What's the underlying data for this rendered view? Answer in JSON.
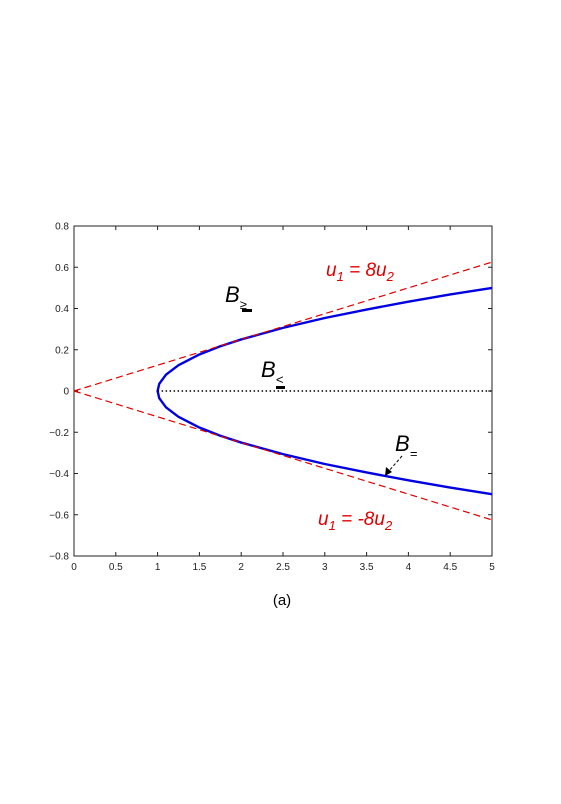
{
  "chart_data": {
    "type": "line",
    "title": "",
    "xlabel": "",
    "ylabel": "",
    "xlim": [
      0,
      5
    ],
    "ylim": [
      -0.8,
      0.8
    ],
    "xticks": [
      0,
      0.5,
      1,
      1.5,
      2,
      2.5,
      3,
      3.5,
      4,
      4.5,
      5
    ],
    "yticks": [
      -0.8,
      -0.6,
      -0.4,
      -0.2,
      0,
      0.2,
      0.4,
      0.6,
      0.8
    ],
    "xtick_labels": [
      "0",
      "0.5",
      "1",
      "1.5",
      "2",
      "2.5",
      "3",
      "3.5",
      "4",
      "4.5",
      "5"
    ],
    "ytick_labels": [
      "−0.8",
      "−0.6",
      "−0.4",
      "−0.2",
      "0",
      "0.2",
      "0.4",
      "0.6",
      "0.8"
    ],
    "grid": false,
    "series": [
      {
        "style": "solid",
        "color": "#0000e0",
        "x": [
          5,
          4.5,
          4,
          3.5,
          3,
          2.5,
          2,
          1.75,
          1.5,
          1.25,
          1.1,
          1.02,
          1,
          1.02,
          1.1,
          1.25,
          1.5,
          1.75,
          2,
          2.5,
          3,
          3.5,
          4,
          4.5,
          5
        ],
        "y": [
          0.5,
          0.468,
          0.433,
          0.395,
          0.354,
          0.306,
          0.25,
          0.217,
          0.177,
          0.125,
          0.079,
          0.035,
          0,
          -0.035,
          -0.079,
          -0.125,
          -0.177,
          -0.217,
          -0.25,
          -0.306,
          -0.354,
          -0.395,
          -0.433,
          -0.468,
          -0.5
        ]
      },
      {
        "style": "dashed",
        "color": "#e00000",
        "x": [
          0,
          5
        ],
        "y": [
          0,
          0.625
        ]
      },
      {
        "style": "dashed",
        "color": "#e00000",
        "x": [
          0,
          5
        ],
        "y": [
          0,
          -0.625
        ]
      },
      {
        "style": "dotted",
        "color": "#000000",
        "x": [
          1,
          5
        ],
        "y": [
          0,
          0
        ]
      }
    ],
    "annotations": {
      "upper_line": {
        "u1": "u",
        "u1_sub": "1",
        "eq": " = 8",
        "u2": "u",
        "u2_sub": "2"
      },
      "lower_line": {
        "u1": "u",
        "u1_sub": "1",
        "eq": " = -8",
        "u2": "u",
        "u2_sub": "2"
      },
      "b_geq": {
        "base": "B",
        "sub": "≥"
      },
      "b_leq": {
        "base": "B",
        "sub": "<"
      },
      "b_eq": {
        "base": "B",
        "sub": "="
      }
    }
  },
  "caption": "(a)"
}
